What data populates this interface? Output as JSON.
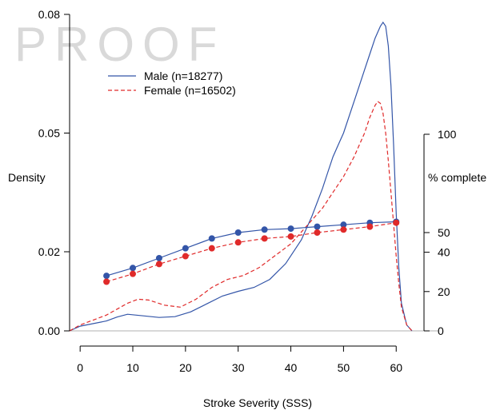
{
  "watermark": "PROOF",
  "chart_data": {
    "type": "line",
    "xlabel": "Stroke Severity (SSS)",
    "ylabel": "Density",
    "y2label": "% complete",
    "xlim": [
      -2,
      63
    ],
    "ylim": [
      0,
      0.08
    ],
    "y2lim": [
      0,
      100
    ],
    "xticks": [
      0,
      10,
      20,
      30,
      40,
      50,
      60
    ],
    "yticks": [
      0.0,
      0.02,
      0.05,
      0.08
    ],
    "ytick_labels": [
      "0.00",
      "0.02",
      "0.05",
      "0.08"
    ],
    "y2ticks": [
      0,
      20,
      40,
      50,
      100
    ],
    "y2tick_labels": [
      "0",
      "20",
      "40",
      "50",
      "100"
    ],
    "legend_position": "top-left",
    "colors": {
      "male": "#3355a8",
      "female": "#e02a2a",
      "axis": "#000000",
      "baseline": "#b0b0b0"
    },
    "series": [
      {
        "name": "Male (n=18277)",
        "kind": "density",
        "style": "solid",
        "x": [
          -3,
          0,
          5,
          7,
          9,
          12,
          15,
          18,
          21,
          24,
          27,
          30,
          33,
          36,
          39,
          42,
          44,
          46,
          47,
          48,
          49,
          50,
          51,
          52,
          53,
          54,
          55,
          56,
          57,
          57.5,
          58,
          58.5,
          59,
          59.5,
          60,
          60.5,
          61,
          62,
          63
        ],
        "y": [
          0,
          0.0012,
          0.0025,
          0.0035,
          0.0042,
          0.0038,
          0.0034,
          0.0036,
          0.0048,
          0.0068,
          0.0088,
          0.01,
          0.011,
          0.013,
          0.017,
          0.023,
          0.029,
          0.036,
          0.04,
          0.044,
          0.047,
          0.05,
          0.054,
          0.058,
          0.062,
          0.066,
          0.07,
          0.074,
          0.077,
          0.078,
          0.077,
          0.072,
          0.062,
          0.047,
          0.03,
          0.016,
          0.007,
          0.0015,
          0
        ],
        "label": "Male (n=18277)"
      },
      {
        "name": "Female (n=16502)",
        "kind": "density",
        "style": "dashed",
        "x": [
          -3,
          0,
          5,
          7,
          9,
          11,
          13,
          16,
          19,
          22,
          25,
          28,
          31,
          34,
          37,
          40,
          42,
          44,
          46,
          48,
          50,
          52,
          54,
          55,
          56,
          56.5,
          57,
          57.5,
          58,
          58.5,
          59,
          59.5,
          60,
          60.5,
          61,
          62,
          63
        ],
        "y": [
          0,
          0.0015,
          0.004,
          0.0055,
          0.007,
          0.008,
          0.0078,
          0.0065,
          0.006,
          0.008,
          0.011,
          0.013,
          0.014,
          0.016,
          0.019,
          0.022,
          0.025,
          0.028,
          0.031,
          0.035,
          0.039,
          0.044,
          0.05,
          0.054,
          0.057,
          0.058,
          0.0575,
          0.055,
          0.05,
          0.043,
          0.035,
          0.027,
          0.019,
          0.012,
          0.006,
          0.0015,
          0
        ]
      },
      {
        "name": "Male % complete",
        "kind": "cumulative",
        "axis": "y2",
        "style": "solid",
        "x": [
          5,
          10,
          15,
          20,
          25,
          30,
          35,
          40,
          45,
          50,
          55,
          60
        ],
        "y": [
          28,
          32,
          37,
          42,
          47,
          50,
          51.5,
          52,
          53,
          54,
          55,
          55.5
        ]
      },
      {
        "name": "Female % complete",
        "kind": "cumulative",
        "axis": "y2",
        "style": "dashed",
        "x": [
          5,
          10,
          15,
          20,
          25,
          30,
          35,
          40,
          45,
          50,
          55,
          60
        ],
        "y": [
          25,
          29,
          34,
          38,
          42,
          45,
          47,
          48,
          50,
          51.5,
          53,
          55
        ]
      }
    ],
    "legend": [
      {
        "label": "Male (n=18277)",
        "style": "solid",
        "color": "#3355a8"
      },
      {
        "label": "Female (n=16502)",
        "style": "dashed",
        "color": "#e02a2a"
      }
    ]
  }
}
